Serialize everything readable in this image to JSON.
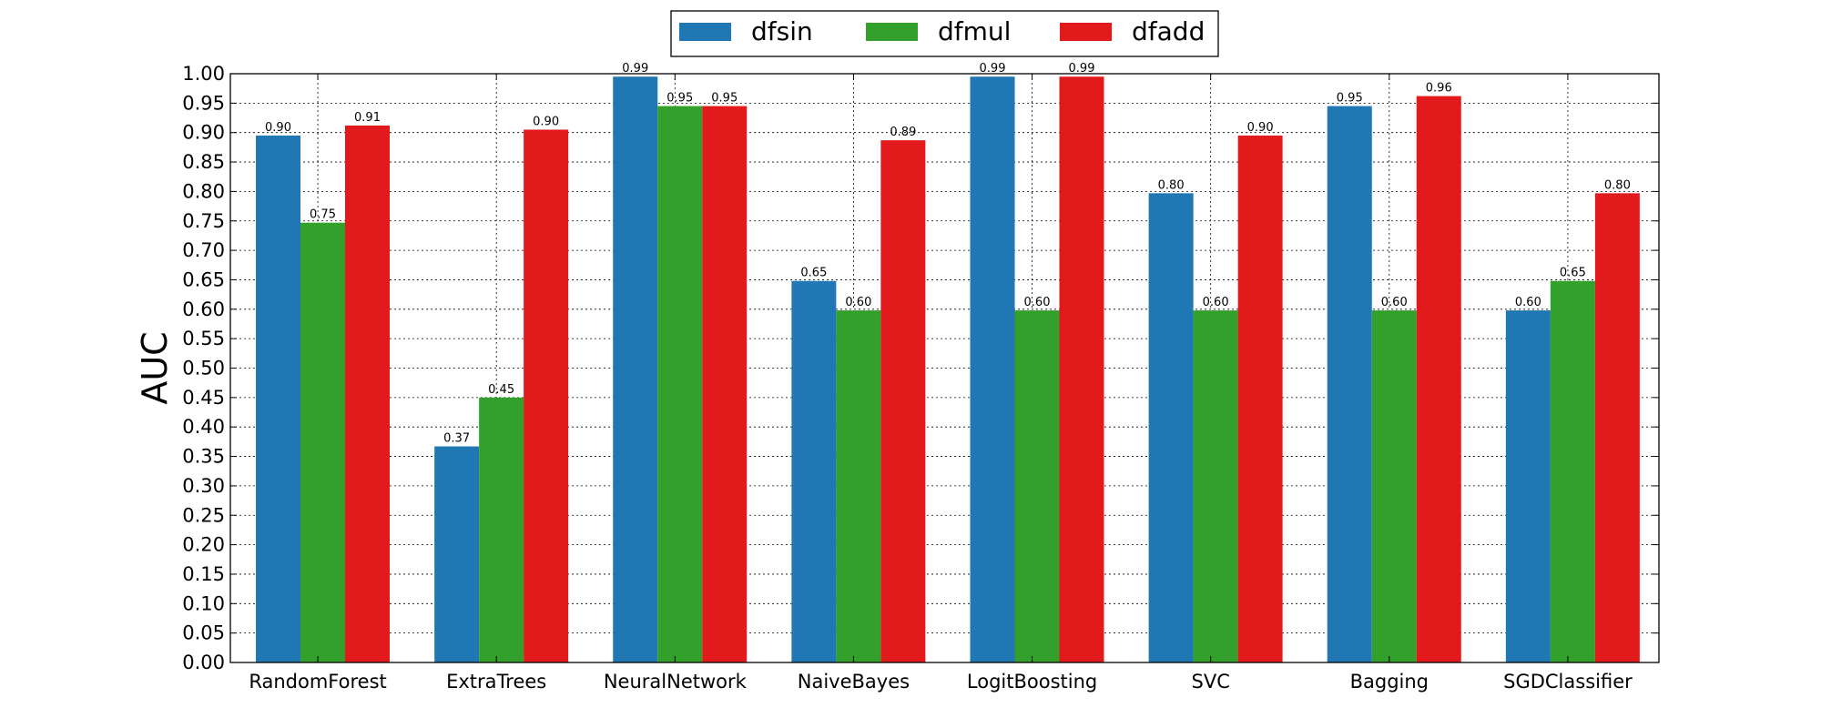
{
  "chart_data": {
    "type": "bar",
    "title": "",
    "xlabel": "",
    "ylabel": "AUC",
    "ylim": [
      0,
      1.0
    ],
    "y_ticks": [
      "0.00",
      "0.05",
      "0.10",
      "0.15",
      "0.20",
      "0.25",
      "0.30",
      "0.35",
      "0.40",
      "0.45",
      "0.50",
      "0.55",
      "0.60",
      "0.65",
      "0.70",
      "0.75",
      "0.80",
      "0.85",
      "0.90",
      "0.95",
      "1.00"
    ],
    "grid": true,
    "legend_position": "top-center",
    "categories": [
      "RandomForest",
      "ExtraTrees",
      "NeuralNetwork",
      "NaiveBayes",
      "LogitBoosting",
      "SVC",
      "Bagging",
      "SGDClassifier"
    ],
    "series": [
      {
        "name": "dfsin",
        "color": "#1f77b4",
        "values": [
          0.895,
          0.367,
          0.995,
          0.648,
          0.995,
          0.797,
          0.945,
          0.598
        ],
        "labels": [
          "0.90",
          "0.37",
          "0.99",
          "0.65",
          "0.99",
          "0.80",
          "0.95",
          "0.60"
        ]
      },
      {
        "name": "dfmul",
        "color": "#33a02c",
        "values": [
          0.747,
          0.45,
          0.945,
          0.598,
          0.598,
          0.598,
          0.598,
          0.648
        ],
        "labels": [
          "0.75",
          "0.45",
          "0.95",
          "0.60",
          "0.60",
          "0.60",
          "0.60",
          "0.65"
        ]
      },
      {
        "name": "dfadd",
        "color": "#e31a1c",
        "values": [
          0.912,
          0.905,
          0.945,
          0.887,
          0.995,
          0.895,
          0.962,
          0.797
        ],
        "labels": [
          "0.91",
          "0.90",
          "0.95",
          "0.89",
          "0.99",
          "0.90",
          "0.96",
          "0.80"
        ]
      }
    ]
  }
}
